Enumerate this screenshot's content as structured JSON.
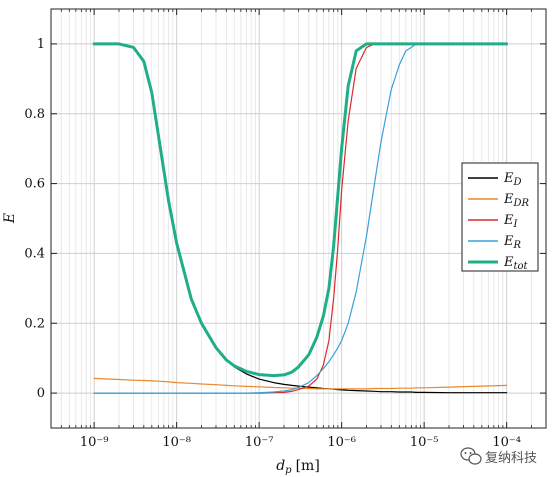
{
  "chart_data": {
    "type": "line",
    "xscale": "log",
    "xlim": [
      3e-10,
      0.0003
    ],
    "ylim": [
      -0.1,
      1.1
    ],
    "xticks": [
      1e-09,
      1e-08,
      1e-07,
      1e-06,
      1e-05,
      0.0001
    ],
    "xtick_labels": [
      "10⁻⁹",
      "10⁻⁸",
      "10⁻⁷",
      "10⁻⁶",
      "10⁻⁵",
      "10⁻⁴"
    ],
    "yticks": [
      0,
      0.2,
      0.4,
      0.6,
      0.8,
      1
    ],
    "ytick_labels": [
      "0",
      "0.2",
      "0.4",
      "0.6",
      "0.8",
      "1"
    ],
    "xlabel": "d_p [m]",
    "xlabel_main": "d",
    "xlabel_sub": "p",
    "xlabel_unit": "[m]",
    "ylabel": "E",
    "grid": true,
    "legend_position": "right",
    "x": [
      1e-09,
      2e-09,
      3e-09,
      4e-09,
      5e-09,
      6e-09,
      8e-09,
      1e-08,
      1.5e-08,
      2e-08,
      3e-08,
      4e-08,
      5e-08,
      7e-08,
      1e-07,
      1.5e-07,
      2e-07,
      2.5e-07,
      3e-07,
      4e-07,
      5e-07,
      6e-07,
      7e-07,
      8e-07,
      9e-07,
      1e-06,
      1.2e-06,
      1.5e-06,
      2e-06,
      2.5e-06,
      3e-06,
      4e-06,
      5e-06,
      6e-06,
      7e-06,
      8e-06,
      1e-05,
      2e-05,
      5e-05,
      0.0001
    ],
    "series": [
      {
        "name": "E_D",
        "label_main": "E",
        "label_sub": "D",
        "color": "#000000",
        "y": [
          1,
          1,
          0.99,
          0.95,
          0.86,
          0.74,
          0.55,
          0.43,
          0.27,
          0.2,
          0.13,
          0.095,
          0.075,
          0.055,
          0.04,
          0.03,
          0.025,
          0.022,
          0.02,
          0.017,
          0.015,
          0.013,
          0.012,
          0.011,
          0.01,
          0.009,
          0.008,
          0.007,
          0.006,
          0.005,
          0.004,
          0.004,
          0.003,
          0.003,
          0.003,
          0.002,
          0.002,
          0.001,
          0.001,
          0.001
        ]
      },
      {
        "name": "E_DR",
        "label_main": "E",
        "label_sub": "DR",
        "color": "#e8892c",
        "y": [
          0.042,
          0.039,
          0.037,
          0.036,
          0.035,
          0.034,
          0.032,
          0.03,
          0.028,
          0.026,
          0.024,
          0.022,
          0.021,
          0.019,
          0.018,
          0.016,
          0.015,
          0.014,
          0.014,
          0.013,
          0.012,
          0.012,
          0.012,
          0.012,
          0.012,
          0.012,
          0.012,
          0.012,
          0.012,
          0.013,
          0.013,
          0.013,
          0.014,
          0.014,
          0.014,
          0.015,
          0.015,
          0.017,
          0.02,
          0.022
        ]
      },
      {
        "name": "E_I",
        "label_main": "E",
        "label_sub": "I",
        "color": "#d92b2b",
        "y": [
          0,
          0,
          0,
          0,
          0,
          0,
          0,
          0,
          0,
          0,
          0,
          0,
          0,
          0,
          0,
          0.001,
          0.002,
          0.005,
          0.01,
          0.02,
          0.04,
          0.08,
          0.15,
          0.27,
          0.42,
          0.58,
          0.78,
          0.93,
          0.99,
          1,
          1,
          1,
          1,
          1,
          1,
          1,
          1,
          1,
          1,
          1
        ]
      },
      {
        "name": "E_R",
        "label_main": "E",
        "label_sub": "R",
        "color": "#3aa0d8",
        "y": [
          0,
          0,
          0,
          0,
          0,
          0,
          0,
          0,
          0,
          0,
          0,
          0,
          0,
          0,
          0.001,
          0.003,
          0.006,
          0.01,
          0.016,
          0.03,
          0.05,
          0.07,
          0.09,
          0.11,
          0.13,
          0.15,
          0.2,
          0.29,
          0.45,
          0.6,
          0.72,
          0.87,
          0.94,
          0.98,
          0.99,
          1,
          1,
          1,
          1,
          1
        ]
      },
      {
        "name": "E_tot",
        "label_main": "E",
        "label_sub": "tot",
        "color": "#1fae87",
        "y": [
          1,
          1,
          0.99,
          0.95,
          0.86,
          0.74,
          0.55,
          0.43,
          0.27,
          0.2,
          0.13,
          0.095,
          0.078,
          0.062,
          0.053,
          0.05,
          0.052,
          0.06,
          0.075,
          0.11,
          0.16,
          0.22,
          0.3,
          0.42,
          0.57,
          0.7,
          0.88,
          0.98,
          1,
          1,
          1,
          1,
          1,
          1,
          1,
          1,
          1,
          1,
          1,
          1
        ]
      }
    ]
  },
  "watermark": {
    "text": "复纳科技",
    "icon": "wechat-icon",
    "color": "#555555"
  }
}
